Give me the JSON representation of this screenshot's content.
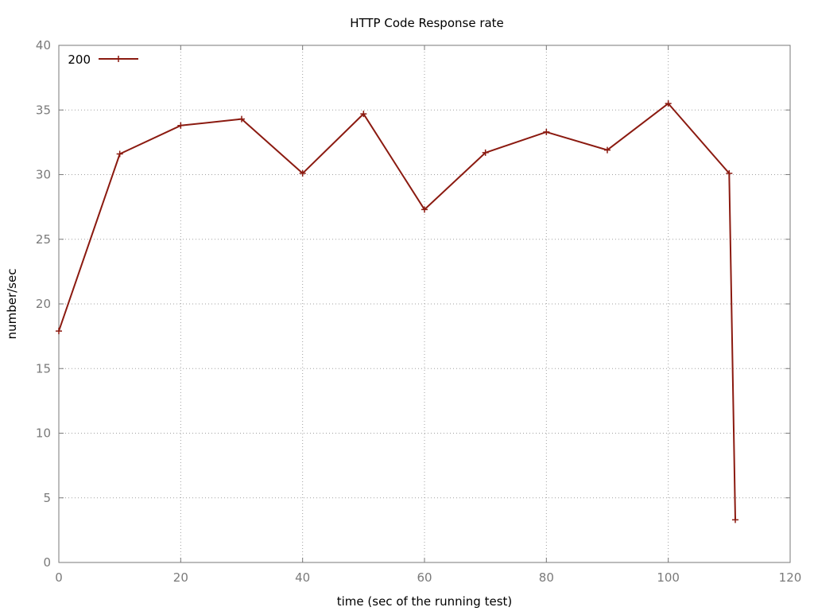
{
  "chart_data": {
    "type": "line",
    "title": "HTTP Code Response rate",
    "xlabel": "time (sec of the running test)",
    "ylabel": "number/sec",
    "xlim": [
      0,
      120
    ],
    "ylim": [
      0,
      40
    ],
    "xticks": [
      0,
      20,
      40,
      60,
      80,
      100,
      120
    ],
    "yticks": [
      0,
      5,
      10,
      15,
      20,
      25,
      30,
      35,
      40
    ],
    "grid": true,
    "legend_position": "top-left",
    "series": [
      {
        "name": "200",
        "color": "#8b1a10",
        "marker": "plus",
        "x": [
          0,
          10,
          20,
          30,
          40,
          50,
          60,
          70,
          80,
          90,
          100,
          110,
          111
        ],
        "y": [
          17.9,
          31.6,
          33.8,
          34.3,
          30.1,
          34.7,
          27.3,
          31.7,
          33.3,
          31.9,
          35.5,
          30.1,
          3.3
        ]
      }
    ]
  }
}
